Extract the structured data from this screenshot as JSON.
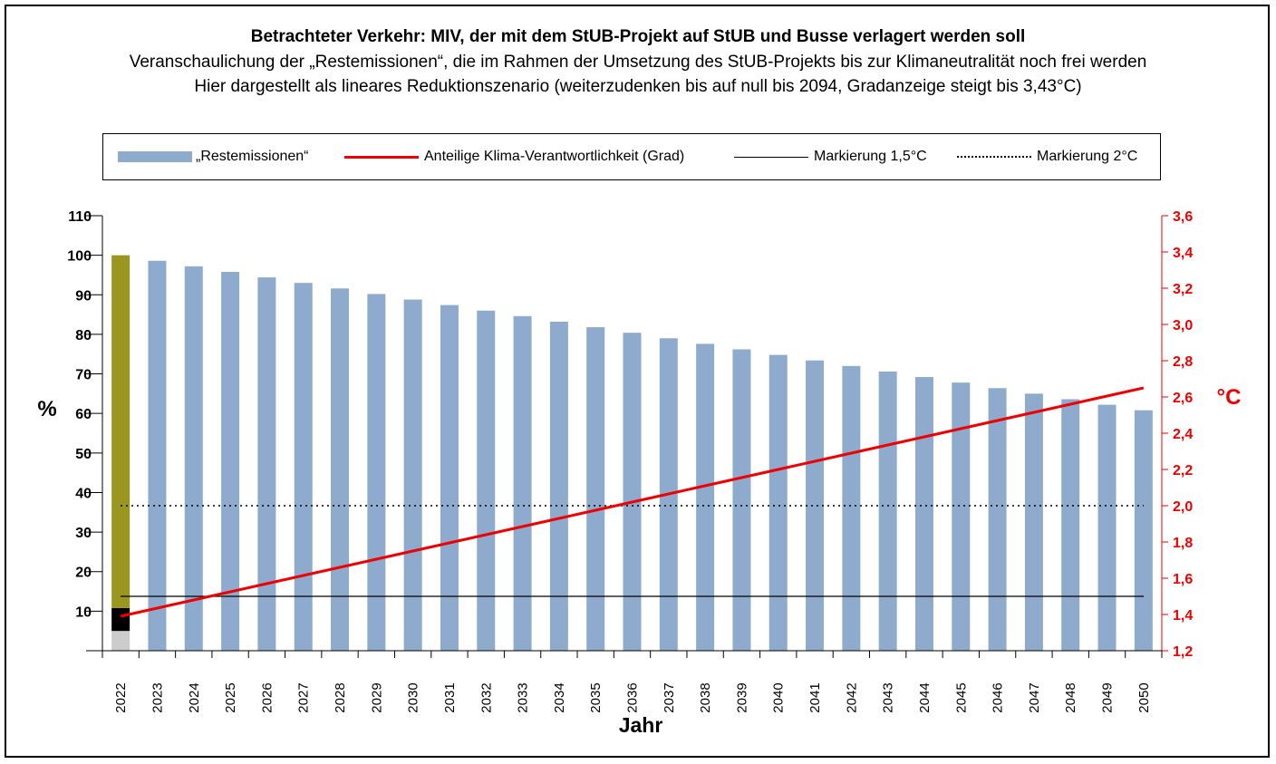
{
  "title": {
    "line1": "Betrachteter Verkehr: MIV, der mit dem StUB-Projekt auf StUB und Busse verlagert werden soll",
    "line2": "Veranschaulichung der „Restemissionen“, die im Rahmen der Umsetzung des StUB-Projekts bis zur Klimaneutralität noch frei werden",
    "line3": "Hier dargestellt als lineares Reduktionszenario (weiterzudenken bis auf null bis 2094, Gradanzeige steigt bis 3,43°C)"
  },
  "legend": {
    "bars": "„Restemissionen“",
    "red_line": "Anteilige Klima-Verantwortlichkeit (Grad)",
    "solid_line": "Markierung 1,5°C",
    "dotted_line": "Markierung 2°C"
  },
  "colors": {
    "bar": "#8eabcd",
    "bar_first": "#9b9620",
    "bar_first_black": "#000000",
    "bar_first_gray": "#cccccc",
    "temp_line": "#ee0000",
    "marker_line": "#000000"
  },
  "chart_data": {
    "type": "bar",
    "title": "Betrachteter Verkehr: MIV, der mit dem StUB-Projekt auf StUB und Busse verlagert werden soll",
    "xlabel": "Jahr",
    "ylabel": "%",
    "y2label": "°C",
    "ylim": [
      0,
      110
    ],
    "y2lim": [
      1.2,
      3.6
    ],
    "yticks": [
      "10",
      "20",
      "30",
      "40",
      "50",
      "60",
      "70",
      "80",
      "90",
      "100",
      "110"
    ],
    "y2ticks": [
      "1,2",
      "1,4",
      "1,6",
      "1,8",
      "2,0",
      "2,2",
      "2,4",
      "2,6",
      "2,8",
      "3,0",
      "3,2",
      "3,4",
      "3,6"
    ],
    "categories": [
      "2022",
      "2023",
      "2024",
      "2025",
      "2026",
      "2027",
      "2028",
      "2029",
      "2030",
      "2031",
      "2032",
      "2033",
      "2034",
      "2035",
      "2036",
      "2037",
      "2038",
      "2039",
      "2040",
      "2041",
      "2042",
      "2043",
      "2044",
      "2045",
      "2046",
      "2047",
      "2048",
      "2049",
      "2050"
    ],
    "series": [
      {
        "name": "„Restemissionen“",
        "axis": "left",
        "values": [
          100,
          98.6,
          97.2,
          95.8,
          94.4,
          93.0,
          91.6,
          90.2,
          88.8,
          87.4,
          86.0,
          84.6,
          83.2,
          81.8,
          80.4,
          79.0,
          77.6,
          76.2,
          74.8,
          73.4,
          72.0,
          70.6,
          69.2,
          67.8,
          66.4,
          65.0,
          63.6,
          62.2,
          60.8
        ]
      },
      {
        "name": "Anteilige Klima-Verantwortlichkeit (Grad)",
        "axis": "right",
        "type": "line",
        "values": [
          1.39,
          1.435,
          1.48,
          1.525,
          1.57,
          1.615,
          1.66,
          1.705,
          1.75,
          1.795,
          1.84,
          1.885,
          1.93,
          1.975,
          2.02,
          2.065,
          2.11,
          2.155,
          2.2,
          2.245,
          2.29,
          2.335,
          2.38,
          2.425,
          2.47,
          2.515,
          2.56,
          2.605,
          2.65
        ]
      }
    ],
    "first_bar_segments": [
      {
        "from": 0,
        "to": 5,
        "label": "grau"
      },
      {
        "from": 5,
        "to": 10.8,
        "label": "schwarz"
      },
      {
        "from": 10.8,
        "to": 100,
        "label": "oliv"
      }
    ],
    "reference_lines": [
      {
        "name": "Markierung 1,5°C",
        "axis": "right",
        "value": 1.5,
        "style": "solid"
      },
      {
        "name": "Markierung 2°C",
        "axis": "right",
        "value": 2.0,
        "style": "dotted"
      }
    ]
  }
}
